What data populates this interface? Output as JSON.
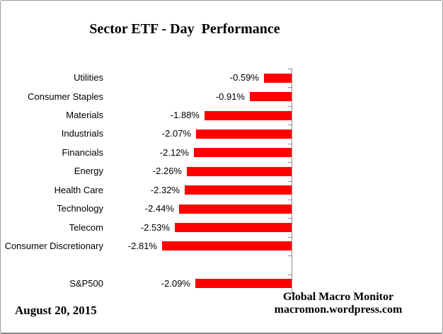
{
  "chart_data": {
    "type": "bar",
    "orientation": "horizontal",
    "title": "Sector ETF - Day  Performance",
    "categories": [
      "Utilities",
      "Consumer Staples",
      "Materials",
      "Industrials",
      "Financials",
      "Energy",
      "Health Care",
      "Technology",
      "Telecom",
      "Consumer Discretionary",
      "S&P500"
    ],
    "values": [
      -0.59,
      -0.91,
      -1.88,
      -2.07,
      -2.12,
      -2.26,
      -2.32,
      -2.44,
      -2.53,
      -2.81,
      -2.09
    ],
    "value_labels": [
      "-0.59%",
      "-0.91%",
      "-1.88%",
      "-2.07%",
      "-2.12%",
      "-2.26%",
      "-2.32%",
      "-2.44%",
      "-2.53%",
      "-2.81%",
      "-2.09%"
    ],
    "xlim": [
      -3.15,
      0
    ],
    "grid": false,
    "legend": false,
    "bar_color": "#ff0000",
    "axis_color": "#8c8c8c",
    "value_label_position": "left-of-bar",
    "layout": {
      "spacer_slots": [
        10
      ]
    }
  },
  "footer": {
    "date": "August 20, 2015",
    "source_line1": "Global Macro Monitor",
    "source_line2": "macromon.wordpress.com"
  }
}
